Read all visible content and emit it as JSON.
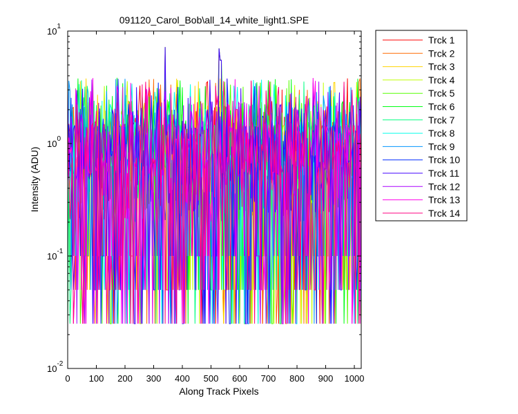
{
  "chart_data": {
    "type": "line",
    "title": "091120_Carol_Bob\\all_14_white_light1.SPE",
    "xlabel": "Along Track Pixels",
    "ylabel": "Intensity (ADU)",
    "xlim": [
      0,
      1024
    ],
    "ylim": [
      0.01,
      10
    ],
    "yscale": "log",
    "grid": false,
    "legend_location": "outside-right",
    "x_ticks": [
      0,
      100,
      200,
      300,
      400,
      500,
      600,
      700,
      800,
      900,
      1000
    ],
    "x_tick_labels": [
      "0",
      "100",
      "200",
      "300",
      "400",
      "500",
      "600",
      "700",
      "800",
      "900",
      "1000"
    ],
    "y_ticks": [
      0.01,
      0.1,
      1,
      10
    ],
    "y_tick_bases": [
      "10",
      "10",
      "10",
      "10"
    ],
    "y_tick_exponents": [
      "-2",
      "-1",
      "0",
      "1"
    ],
    "noise": {
      "description_levels": [
        0.025,
        0.05,
        0.1,
        0.5,
        1,
        2,
        3.5
      ],
      "x_step": 4
    },
    "series": [
      {
        "name": "Trck 1",
        "color": "#ff0000"
      },
      {
        "name": "Trck 2",
        "color": "#ff6a00"
      },
      {
        "name": "Trck 3",
        "color": "#ffd500"
      },
      {
        "name": "Trck 4",
        "color": "#bfff00"
      },
      {
        "name": "Trck 5",
        "color": "#55ff00"
      },
      {
        "name": "Trck 6",
        "color": "#00ff15"
      },
      {
        "name": "Trck 7",
        "color": "#00ff80"
      },
      {
        "name": "Trck 8",
        "color": "#00ffea"
      },
      {
        "name": "Trck 9",
        "color": "#0095ff"
      },
      {
        "name": "Trck 10",
        "color": "#002bff"
      },
      {
        "name": "Trck 11",
        "color": "#4000ff"
      },
      {
        "name": "Trck 12",
        "color": "#aa00ff"
      },
      {
        "name": "Trck 13",
        "color": "#ff00ea"
      },
      {
        "name": "Trck 14",
        "color": "#ff0080"
      }
    ],
    "peaks": [
      {
        "x": 340,
        "y": 7.2
      },
      {
        "x": 528,
        "y": 7.0
      },
      {
        "x": 535,
        "y": 5.5
      }
    ]
  }
}
